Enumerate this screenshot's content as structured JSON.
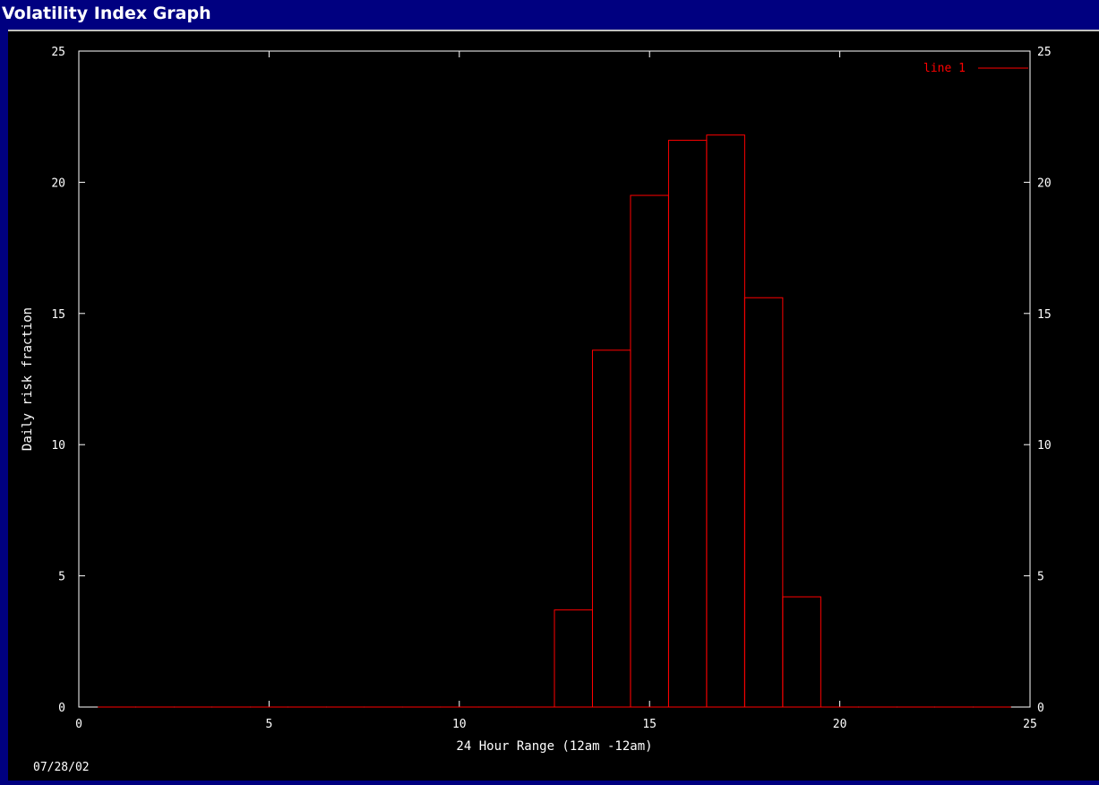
{
  "window": {
    "title": "Volatility Index Graph"
  },
  "footer": {
    "date": "07/28/02"
  },
  "colors": {
    "background": "#000000",
    "frame": "#000080",
    "axes": "#ffffff",
    "series": "#ff0000"
  },
  "chart_data": {
    "type": "bar",
    "style": "histogram-steps",
    "xlabel": "24 Hour Range (12am -12am)",
    "ylabel": "Daily risk fraction",
    "xlim": [
      0,
      25
    ],
    "ylim": [
      0,
      25
    ],
    "xticks": [
      0,
      5,
      10,
      15,
      20,
      25
    ],
    "yticks": [
      0,
      5,
      10,
      15,
      20,
      25
    ],
    "mirror_y_axis": true,
    "grid": false,
    "legend": {
      "position": "top-right"
    },
    "series": [
      {
        "name": "line 1",
        "color": "#ff0000",
        "x": [
          1,
          2,
          3,
          4,
          5,
          6,
          7,
          8,
          9,
          10,
          11,
          12,
          13,
          14,
          15,
          16,
          17,
          18,
          19,
          20,
          21,
          22,
          23,
          24
        ],
        "values": [
          0,
          0,
          0,
          0,
          0,
          0,
          0,
          0,
          0,
          0,
          0,
          0,
          3.7,
          13.6,
          19.5,
          21.6,
          21.8,
          15.6,
          4.2,
          0,
          0,
          0,
          0,
          0
        ]
      }
    ]
  }
}
